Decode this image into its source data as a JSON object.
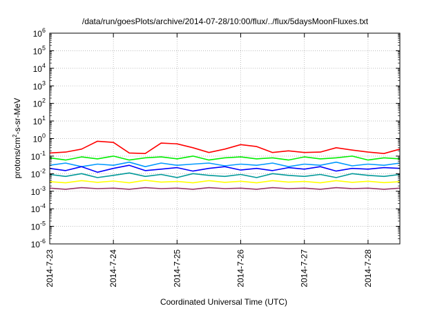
{
  "chart_data": {
    "type": "line",
    "title": "/data/run/goesPlots/archive/2014-07-28/10:00/flux/../flux/5daysMoonFluxes.txt",
    "xlabel": "Coordinated Universal Time (UTC)",
    "ylabel": {
      "base": "protons/cm",
      "sup": "2",
      "rest": "-s-sr-MeV"
    },
    "x_range_days": [
      0,
      5.5
    ],
    "y_scale": "log",
    "ylim": [
      1e-06,
      1000000.0
    ],
    "grid": true,
    "legend": "none",
    "x_ticks": [
      {
        "day": 0,
        "label": "2014-7-23"
      },
      {
        "day": 1,
        "label": "2014-7-24"
      },
      {
        "day": 2,
        "label": "2014-7-25"
      },
      {
        "day": 3,
        "label": "2014-7-26"
      },
      {
        "day": 4,
        "label": "2014-7-27"
      },
      {
        "day": 5,
        "label": "2014-7-28"
      }
    ],
    "y_ticks": [
      {
        "exp": -6,
        "label": "10",
        "sup": "-6"
      },
      {
        "exp": -5,
        "label": "10",
        "sup": "-5"
      },
      {
        "exp": -4,
        "label": "10",
        "sup": "-4"
      },
      {
        "exp": -3,
        "label": "10",
        "sup": "-3"
      },
      {
        "exp": -2,
        "label": "10",
        "sup": "-2"
      },
      {
        "exp": -1,
        "label": "10",
        "sup": "-1"
      },
      {
        "exp": 0,
        "label": "10",
        "sup": "0"
      },
      {
        "exp": 1,
        "label": "10",
        "sup": "1"
      },
      {
        "exp": 2,
        "label": "10",
        "sup": "2"
      },
      {
        "exp": 3,
        "label": "10",
        "sup": "3"
      },
      {
        "exp": 4,
        "label": "10",
        "sup": "4"
      },
      {
        "exp": 5,
        "label": "10",
        "sup": "5"
      },
      {
        "exp": 6,
        "label": "10",
        "sup": "6"
      }
    ],
    "series": [
      {
        "color": "#ff0000",
        "x": [
          0,
          0.25,
          0.5,
          0.75,
          1,
          1.25,
          1.5,
          1.75,
          2,
          2.25,
          2.5,
          2.75,
          3,
          3.25,
          3.5,
          3.75,
          4,
          4.25,
          4.5,
          4.75,
          5,
          5.25,
          5.5
        ],
        "y": [
          0.15,
          0.17,
          0.25,
          0.7,
          0.6,
          0.15,
          0.14,
          0.55,
          0.5,
          0.3,
          0.16,
          0.25,
          0.45,
          0.35,
          0.16,
          0.2,
          0.16,
          0.17,
          0.3,
          0.22,
          0.17,
          0.14,
          0.25
        ]
      },
      {
        "color": "#00ee00",
        "x": [
          0,
          0.25,
          0.5,
          0.75,
          1,
          1.25,
          1.5,
          1.75,
          2,
          2.25,
          2.5,
          2.75,
          3,
          3.25,
          3.5,
          3.75,
          4,
          4.25,
          4.5,
          4.75,
          5,
          5.25,
          5.5
        ],
        "y": [
          0.08,
          0.06,
          0.09,
          0.07,
          0.1,
          0.06,
          0.08,
          0.09,
          0.07,
          0.1,
          0.06,
          0.08,
          0.09,
          0.07,
          0.08,
          0.06,
          0.09,
          0.07,
          0.08,
          0.1,
          0.06,
          0.08,
          0.07
        ]
      },
      {
        "color": "#0099ff",
        "x": [
          0,
          0.25,
          0.5,
          0.75,
          1,
          1.25,
          1.5,
          1.75,
          2,
          2.25,
          2.5,
          2.75,
          3,
          3.25,
          3.5,
          3.75,
          4,
          4.25,
          4.5,
          4.75,
          5,
          5.25,
          5.5
        ],
        "y": [
          0.03,
          0.04,
          0.025,
          0.035,
          0.03,
          0.045,
          0.025,
          0.04,
          0.03,
          0.035,
          0.04,
          0.028,
          0.035,
          0.03,
          0.04,
          0.025,
          0.035,
          0.03,
          0.045,
          0.028,
          0.035,
          0.03,
          0.04
        ]
      },
      {
        "color": "#0000ff",
        "x": [
          0,
          0.25,
          0.5,
          0.75,
          1,
          1.25,
          1.5,
          1.75,
          2,
          2.25,
          2.5,
          2.75,
          3,
          3.25,
          3.5,
          3.75,
          4,
          4.25,
          4.5,
          4.75,
          5,
          5.25,
          5.5
        ],
        "y": [
          0.02,
          0.015,
          0.025,
          0.012,
          0.02,
          0.03,
          0.015,
          0.018,
          0.022,
          0.014,
          0.02,
          0.025,
          0.016,
          0.02,
          0.015,
          0.022,
          0.018,
          0.025,
          0.014,
          0.02,
          0.018,
          0.022,
          0.02
        ]
      },
      {
        "color": "#009999",
        "x": [
          0,
          0.25,
          0.5,
          0.75,
          1,
          1.25,
          1.5,
          1.75,
          2,
          2.25,
          2.5,
          2.75,
          3,
          3.25,
          3.5,
          3.75,
          4,
          4.25,
          4.5,
          4.75,
          5,
          5.25,
          5.5
        ],
        "y": [
          0.009,
          0.007,
          0.01,
          0.006,
          0.008,
          0.011,
          0.007,
          0.009,
          0.006,
          0.01,
          0.008,
          0.007,
          0.009,
          0.006,
          0.01,
          0.008,
          0.007,
          0.009,
          0.006,
          0.01,
          0.008,
          0.007,
          0.009
        ]
      },
      {
        "color": "#ffff00",
        "x": [
          0,
          0.25,
          0.5,
          0.75,
          1,
          1.25,
          1.5,
          1.75,
          2,
          2.25,
          2.5,
          2.75,
          3,
          3.25,
          3.5,
          3.75,
          4,
          4.25,
          4.5,
          4.75,
          5,
          5.25,
          5.5
        ],
        "y": [
          0.0035,
          0.003,
          0.004,
          0.0032,
          0.0038,
          0.003,
          0.0042,
          0.0033,
          0.0036,
          0.003,
          0.004,
          0.0032,
          0.0037,
          0.003,
          0.004,
          0.0033,
          0.0036,
          0.003,
          0.004,
          0.0032,
          0.0037,
          0.0031,
          0.0035
        ]
      },
      {
        "color": "#993366",
        "x": [
          0,
          0.25,
          0.5,
          0.75,
          1,
          1.25,
          1.5,
          1.75,
          2,
          2.25,
          2.5,
          2.75,
          3,
          3.25,
          3.5,
          3.75,
          4,
          4.25,
          4.5,
          4.75,
          5,
          5.25,
          5.5
        ],
        "y": [
          0.0015,
          0.0013,
          0.0016,
          0.0014,
          0.0015,
          0.0013,
          0.0016,
          0.0014,
          0.0015,
          0.0013,
          0.0016,
          0.0014,
          0.0015,
          0.0013,
          0.0016,
          0.0014,
          0.0015,
          0.0013,
          0.0016,
          0.0014,
          0.0015,
          0.0013,
          0.0015
        ]
      }
    ]
  }
}
